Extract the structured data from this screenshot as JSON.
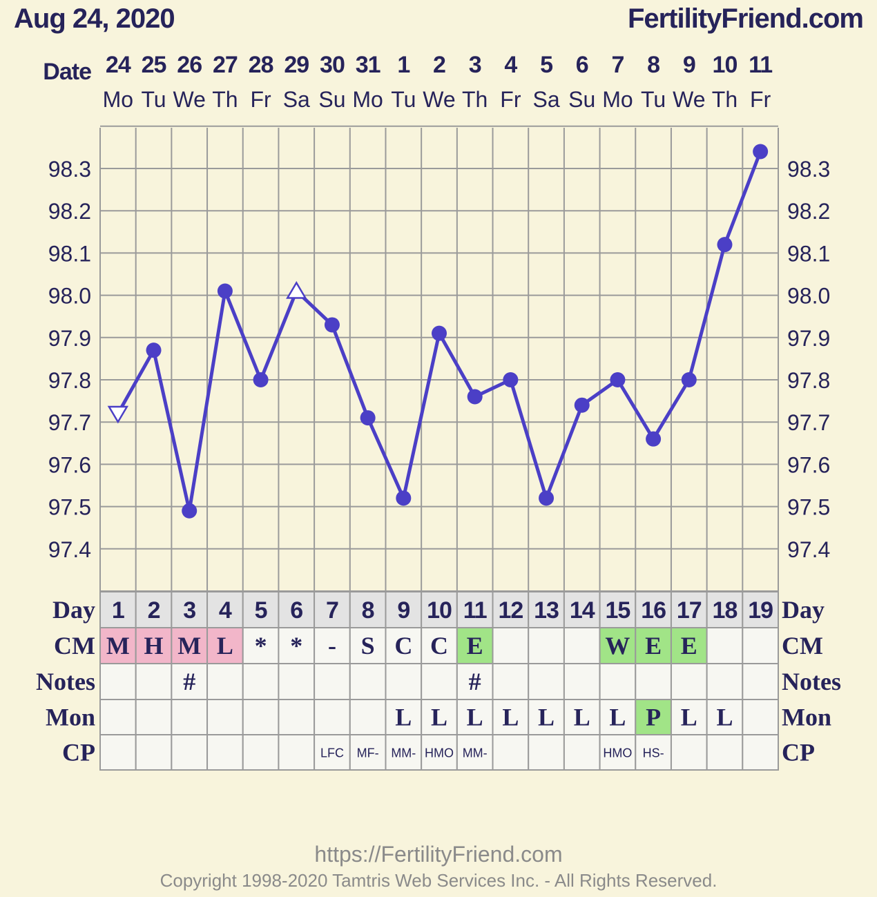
{
  "header": {
    "date_title": "Aug 24, 2020",
    "site": "FertilityFriend.com"
  },
  "footer": {
    "url": "https://FertilityFriend.com",
    "copyright": "Copyright 1998-2020 Tamtris Web Services Inc. - All Rights Reserved."
  },
  "colors": {
    "background": "#f8f4dc",
    "line": "#4b3fc6",
    "text": "#26235a",
    "pink": "#f2b6c9",
    "green": "#a1e487",
    "day_bg": "#e3e3e3",
    "cell_bg": "#f7f7f2",
    "grid": "#9a9a9a"
  },
  "chart_data": {
    "type": "line",
    "date_label": "Date",
    "dates": [
      "24",
      "25",
      "26",
      "27",
      "28",
      "29",
      "30",
      "31",
      "1",
      "2",
      "3",
      "4",
      "5",
      "6",
      "7",
      "8",
      "9",
      "10",
      "11"
    ],
    "weekdays": [
      "Mo",
      "Tu",
      "We",
      "Th",
      "Fr",
      "Sa",
      "Su",
      "Mo",
      "Tu",
      "We",
      "Th",
      "Fr",
      "Sa",
      "Su",
      "Mo",
      "Tu",
      "We",
      "Th",
      "Fr"
    ],
    "y_ticks": [
      "98.3",
      "98.2",
      "98.1",
      "98.0",
      "97.9",
      "97.8",
      "97.7",
      "97.6",
      "97.5",
      "97.4"
    ],
    "ylim": [
      97.3,
      98.4
    ],
    "grid": true,
    "series": [
      {
        "values": [
          97.72,
          97.87,
          97.49,
          98.01,
          97.8,
          98.01,
          97.93,
          97.71,
          97.52,
          97.91,
          97.76,
          97.8,
          97.52,
          97.74,
          97.8,
          97.66,
          97.8,
          98.12,
          98.34
        ],
        "markers": [
          "open-triangle-down",
          "dot",
          "dot",
          "dot",
          "dot",
          "open-triangle-up",
          "dot",
          "dot",
          "dot",
          "dot",
          "dot",
          "dot",
          "dot",
          "dot",
          "dot",
          "dot",
          "dot",
          "dot",
          "dot"
        ]
      }
    ],
    "rows": {
      "day": {
        "label": "Day",
        "values": [
          "1",
          "2",
          "3",
          "4",
          "5",
          "6",
          "7",
          "8",
          "9",
          "10",
          "11",
          "12",
          "13",
          "14",
          "15",
          "16",
          "17",
          "18",
          "19"
        ]
      },
      "cm": {
        "label": "CM",
        "values": [
          "M",
          "H",
          "M",
          "L",
          "*",
          "*",
          "-",
          "S",
          "C",
          "C",
          "E",
          "",
          "",
          "",
          "W",
          "E",
          "E",
          "",
          ""
        ],
        "highlight": [
          "pink",
          "pink",
          "pink",
          "pink",
          "",
          "",
          "",
          "",
          "",
          "",
          "green",
          "",
          "",
          "",
          "green",
          "green",
          "green",
          "",
          ""
        ]
      },
      "notes": {
        "label": "Notes",
        "values": [
          "",
          "",
          "#",
          "",
          "",
          "",
          "",
          "",
          "",
          "",
          "#",
          "",
          "",
          "",
          "",
          "",
          "",
          "",
          ""
        ]
      },
      "mon": {
        "label": "Mon",
        "values": [
          "",
          "",
          "",
          "",
          "",
          "",
          "",
          "",
          "L",
          "L",
          "L",
          "L",
          "L",
          "L",
          "L",
          "P",
          "L",
          "L",
          ""
        ],
        "highlight": [
          "",
          "",
          "",
          "",
          "",
          "",
          "",
          "",
          "",
          "",
          "",
          "",
          "",
          "",
          "",
          "green",
          "",
          "",
          ""
        ]
      },
      "cp": {
        "label": "CP",
        "values": [
          "",
          "",
          "",
          "",
          "",
          "",
          "LFC",
          "MF-",
          "MM-",
          "HMO",
          "MM-",
          "",
          "",
          "",
          "HMO",
          "HS-",
          "",
          "",
          ""
        ]
      }
    }
  }
}
